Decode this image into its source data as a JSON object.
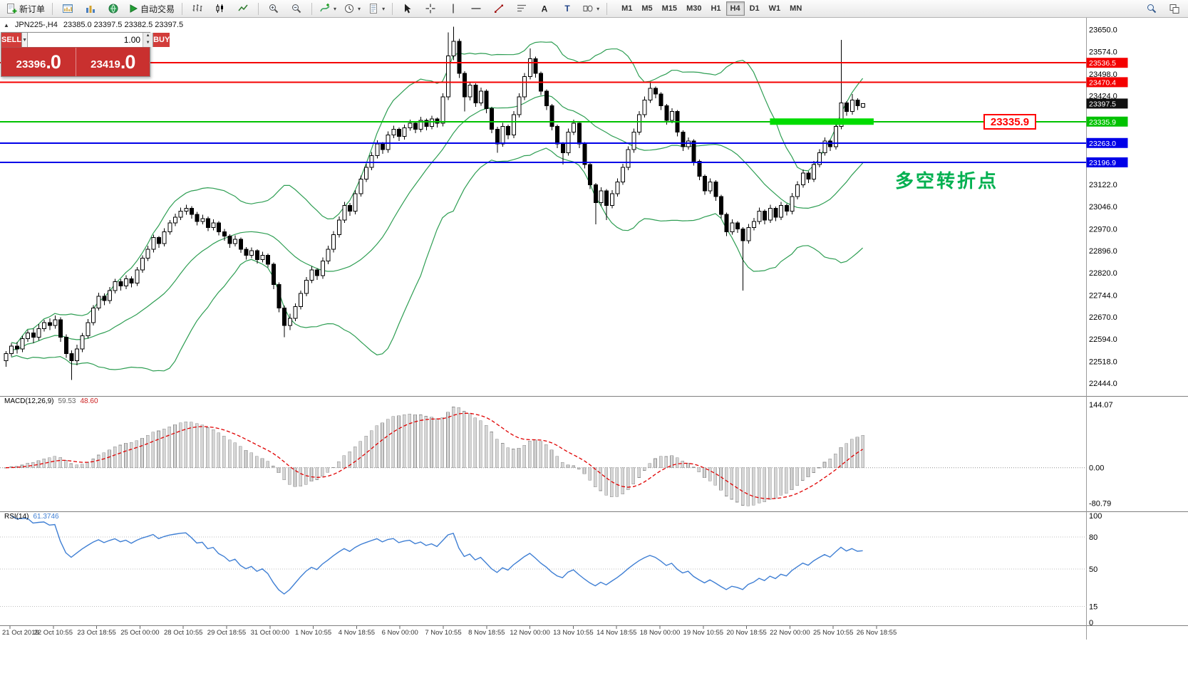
{
  "toolbar": {
    "new_order_label": "新订单",
    "auto_trading_label": "自动交易",
    "timeframes": [
      "M1",
      "M5",
      "M15",
      "M30",
      "H1",
      "H4",
      "D1",
      "W1",
      "MN"
    ],
    "active_timeframe": "H4"
  },
  "icons": {
    "dropdown_arrow": "▾",
    "spinner_up": "▲",
    "spinner_down": "▼",
    "panel_toggle": "▲",
    "order_dropdown": "▼"
  },
  "symbol_info": {
    "symbol_period": "JPN225-,H4",
    "ohlc": "23385.0 23397.5 23382.5 23397.5"
  },
  "trade_panel": {
    "sell_label": "SELL",
    "buy_label": "BUY",
    "volume": "1.00",
    "sell_price": "23396",
    "sell_price_fraction": ".0",
    "buy_price": "23419",
    "buy_price_fraction": ".0",
    "panel_color": "#c9302f"
  },
  "annotations": {
    "turning_point": {
      "text": "多空转折点",
      "color": "#00b050"
    },
    "price_label": {
      "text": "23335.9",
      "color": "#ff0000"
    }
  },
  "chart_data": {
    "type": "candlestick",
    "symbol": "JPN225-",
    "timeframe": "H4",
    "current_price": 23397.5,
    "current_price_label": "23397.5",
    "price_axis_labels": [
      "23650.0",
      "23574.0",
      "23498.0",
      "23424.0",
      "23122.0",
      "23046.0",
      "22970.0",
      "22896.0",
      "22820.0",
      "22744.0",
      "22670.0",
      "22594.0",
      "22518.0",
      "22444.0"
    ],
    "hlines": [
      {
        "price": 23536.5,
        "label": "23536.5",
        "color": "#f40000"
      },
      {
        "price": 23470.4,
        "label": "23470.4",
        "color": "#f40000"
      },
      {
        "price": 23335.9,
        "label": "23335.9",
        "color": "#00c200"
      },
      {
        "price": 23263.0,
        "label": "23263.0",
        "color": "#0000e8"
      },
      {
        "price": 23196.9,
        "label": "23196.9",
        "color": "#0000e8"
      }
    ],
    "highlight_box": {
      "price": 23335.9,
      "from_index": 140,
      "to_index": 159,
      "color": "#00dc00"
    },
    "bollinger": {
      "period": 20,
      "deviation": 2,
      "color": "#2e9e53"
    },
    "x_axis_labels": [
      "21 Oct 2019",
      "22 Oct 10:55",
      "23 Oct 18:55",
      "25 Oct 00:00",
      "28 Oct 10:55",
      "29 Oct 18:55",
      "31 Oct 00:00",
      "1 Nov 10:55",
      "4 Nov 18:55",
      "6 Nov 00:00",
      "7 Nov 10:55",
      "8 Nov 18:55",
      "12 Nov 00:00",
      "13 Nov 10:55",
      "14 Nov 18:55",
      "18 Nov 00:00",
      "19 Nov 10:55",
      "20 Nov 18:55",
      "22 Nov 00:00",
      "25 Nov 10:55",
      "26 Nov 18:55"
    ],
    "panes": {
      "macd": {
        "name": "MACD(12,26,9)",
        "value_main": "59.53",
        "value_signal": "48.60",
        "fast": 12,
        "slow": 26,
        "signal": 9,
        "axis_labels": [
          "144.07",
          "0.00",
          "-80.79"
        ],
        "bar_color": "#d6d6d6",
        "bar_stroke": "#8f8f8f",
        "signal_color": "#e00000"
      },
      "rsi": {
        "name": "RSI(14)",
        "value": "61.3746",
        "period": 14,
        "axis_labels": [
          "100",
          "80",
          "50",
          "15",
          "0"
        ],
        "levels": [
          80,
          50,
          15
        ],
        "color": "#3f7fd4"
      }
    },
    "candles": [
      [
        22520,
        22553,
        22500,
        22545
      ],
      [
        22545,
        22580,
        22535,
        22570
      ],
      [
        22570,
        22585,
        22545,
        22560
      ],
      [
        22560,
        22605,
        22550,
        22595
      ],
      [
        22595,
        22625,
        22585,
        22615
      ],
      [
        22615,
        22630,
        22580,
        22600
      ],
      [
        22600,
        22645,
        22590,
        22630
      ],
      [
        22630,
        22660,
        22620,
        22650
      ],
      [
        22650,
        22665,
        22625,
        22640
      ],
      [
        22640,
        22675,
        22630,
        22660
      ],
      [
        22660,
        22668,
        22585,
        22600
      ],
      [
        22600,
        22610,
        22530,
        22545
      ],
      [
        22545,
        22555,
        22455,
        22520
      ],
      [
        22520,
        22575,
        22505,
        22560
      ],
      [
        22560,
        22615,
        22550,
        22605
      ],
      [
        22605,
        22662,
        22595,
        22650
      ],
      [
        22650,
        22710,
        22640,
        22700
      ],
      [
        22700,
        22752,
        22692,
        22740
      ],
      [
        22740,
        22750,
        22710,
        22725
      ],
      [
        22725,
        22772,
        22715,
        22760
      ],
      [
        22760,
        22800,
        22750,
        22790
      ],
      [
        22790,
        22798,
        22760,
        22775
      ],
      [
        22775,
        22812,
        22765,
        22800
      ],
      [
        22800,
        22808,
        22770,
        22785
      ],
      [
        22785,
        22840,
        22775,
        22830
      ],
      [
        22830,
        22880,
        22820,
        22870
      ],
      [
        22870,
        22912,
        22860,
        22900
      ],
      [
        22900,
        22950,
        22890,
        22940
      ],
      [
        22940,
        22945,
        22905,
        22920
      ],
      [
        22920,
        22972,
        22910,
        22960
      ],
      [
        22960,
        23000,
        22950,
        22990
      ],
      [
        22990,
        23022,
        22980,
        23010
      ],
      [
        23010,
        23042,
        23000,
        23030
      ],
      [
        23030,
        23052,
        23018,
        23040
      ],
      [
        23040,
        23048,
        23005,
        23020
      ],
      [
        23020,
        23028,
        22982,
        22995
      ],
      [
        22995,
        23018,
        22985,
        23005
      ],
      [
        23005,
        23012,
        22962,
        22975
      ],
      [
        22975,
        23002,
        22965,
        22990
      ],
      [
        22990,
        22996,
        22948,
        22960
      ],
      [
        22960,
        22970,
        22930,
        22945
      ],
      [
        22945,
        22952,
        22905,
        22920
      ],
      [
        22920,
        22948,
        22910,
        22935
      ],
      [
        22935,
        22940,
        22888,
        22900
      ],
      [
        22900,
        22908,
        22865,
        22880
      ],
      [
        22880,
        22906,
        22870,
        22895
      ],
      [
        22895,
        22900,
        22852,
        22865
      ],
      [
        22865,
        22892,
        22855,
        22880
      ],
      [
        22880,
        22886,
        22838,
        22850
      ],
      [
        22850,
        22856,
        22765,
        22780
      ],
      [
        22780,
        22788,
        22685,
        22700
      ],
      [
        22700,
        22708,
        22600,
        22640
      ],
      [
        22640,
        22680,
        22625,
        22665
      ],
      [
        22665,
        22716,
        22655,
        22705
      ],
      [
        22705,
        22760,
        22695,
        22750
      ],
      [
        22750,
        22806,
        22740,
        22795
      ],
      [
        22795,
        22842,
        22785,
        22830
      ],
      [
        22830,
        22836,
        22796,
        22810
      ],
      [
        22810,
        22872,
        22800,
        22860
      ],
      [
        22860,
        22912,
        22850,
        22900
      ],
      [
        22900,
        22962,
        22890,
        22950
      ],
      [
        22950,
        23012,
        22940,
        23000
      ],
      [
        23000,
        23062,
        22990,
        23050
      ],
      [
        23050,
        23058,
        23015,
        23030
      ],
      [
        23030,
        23102,
        23020,
        23090
      ],
      [
        23090,
        23152,
        23080,
        23140
      ],
      [
        23140,
        23192,
        23130,
        23180
      ],
      [
        23180,
        23232,
        23170,
        23220
      ],
      [
        23220,
        23272,
        23210,
        23260
      ],
      [
        23260,
        23266,
        23226,
        23240
      ],
      [
        23240,
        23302,
        23230,
        23290
      ],
      [
        23290,
        23322,
        23280,
        23310
      ],
      [
        23310,
        23316,
        23270,
        23285
      ],
      [
        23285,
        23326,
        23275,
        23315
      ],
      [
        23315,
        23342,
        23305,
        23330
      ],
      [
        23330,
        23336,
        23296,
        23310
      ],
      [
        23310,
        23352,
        23300,
        23340
      ],
      [
        23340,
        23346,
        23306,
        23320
      ],
      [
        23320,
        23356,
        23310,
        23345
      ],
      [
        23345,
        23350,
        23316,
        23330
      ],
      [
        23330,
        23432,
        23320,
        23420
      ],
      [
        23420,
        23640,
        23410,
        23560
      ],
      [
        23560,
        23660,
        23545,
        23610
      ],
      [
        23610,
        23618,
        23485,
        23500
      ],
      [
        23500,
        23508,
        23370,
        23420
      ],
      [
        23420,
        23472,
        23408,
        23460
      ],
      [
        23460,
        23466,
        23386,
        23400
      ],
      [
        23400,
        23452,
        23390,
        23440
      ],
      [
        23440,
        23446,
        23365,
        23380
      ],
      [
        23380,
        23386,
        23296,
        23310
      ],
      [
        23310,
        23318,
        23230,
        23260
      ],
      [
        23260,
        23332,
        23250,
        23320
      ],
      [
        23320,
        23326,
        23276,
        23290
      ],
      [
        23290,
        23372,
        23280,
        23360
      ],
      [
        23360,
        23432,
        23350,
        23420
      ],
      [
        23420,
        23502,
        23410,
        23490
      ],
      [
        23490,
        23585,
        23480,
        23550
      ],
      [
        23550,
        23558,
        23486,
        23500
      ],
      [
        23500,
        23506,
        23426,
        23440
      ],
      [
        23440,
        23446,
        23376,
        23390
      ],
      [
        23390,
        23396,
        23306,
        23320
      ],
      [
        23320,
        23326,
        23246,
        23260
      ],
      [
        23260,
        23266,
        23190,
        23230
      ],
      [
        23230,
        23312,
        23220,
        23300
      ],
      [
        23300,
        23342,
        23290,
        23330
      ],
      [
        23330,
        23336,
        23246,
        23260
      ],
      [
        23260,
        23266,
        23176,
        23190
      ],
      [
        23190,
        23196,
        23106,
        23120
      ],
      [
        23120,
        23126,
        22985,
        23060
      ],
      [
        23060,
        23112,
        23048,
        23100
      ],
      [
        23100,
        23106,
        23000,
        23050
      ],
      [
        23050,
        23102,
        23040,
        23090
      ],
      [
        23090,
        23142,
        23080,
        23130
      ],
      [
        23130,
        23192,
        23120,
        23180
      ],
      [
        23180,
        23252,
        23170,
        23240
      ],
      [
        23240,
        23312,
        23230,
        23300
      ],
      [
        23300,
        23372,
        23290,
        23360
      ],
      [
        23360,
        23422,
        23350,
        23410
      ],
      [
        23410,
        23468,
        23400,
        23450
      ],
      [
        23450,
        23456,
        23416,
        23430
      ],
      [
        23430,
        23436,
        23376,
        23390
      ],
      [
        23390,
        23396,
        23326,
        23340
      ],
      [
        23340,
        23382,
        23330,
        23370
      ],
      [
        23370,
        23376,
        23286,
        23300
      ],
      [
        23300,
        23306,
        23236,
        23250
      ],
      [
        23250,
        23282,
        23240,
        23270
      ],
      [
        23270,
        23276,
        23186,
        23200
      ],
      [
        23200,
        23206,
        23136,
        23150
      ],
      [
        23150,
        23156,
        23086,
        23100
      ],
      [
        23100,
        23142,
        23090,
        23130
      ],
      [
        23130,
        23136,
        23066,
        23080
      ],
      [
        23080,
        23086,
        23006,
        23020
      ],
      [
        23020,
        23026,
        22946,
        22960
      ],
      [
        22960,
        23002,
        22950,
        22990
      ],
      [
        22990,
        22996,
        22956,
        22970
      ],
      [
        22970,
        22976,
        22760,
        22930
      ],
      [
        22930,
        22987,
        22920,
        22975
      ],
      [
        22975,
        23007,
        22965,
        22995
      ],
      [
        22995,
        23042,
        22985,
        23030
      ],
      [
        23030,
        23036,
        22986,
        23000
      ],
      [
        23000,
        23052,
        22990,
        23040
      ],
      [
        23040,
        23046,
        22996,
        23010
      ],
      [
        23010,
        23062,
        23000,
        23050
      ],
      [
        23050,
        23056,
        23016,
        23030
      ],
      [
        23030,
        23092,
        23020,
        23080
      ],
      [
        23080,
        23132,
        23070,
        23120
      ],
      [
        23120,
        23172,
        23110,
        23160
      ],
      [
        23160,
        23166,
        23126,
        23140
      ],
      [
        23140,
        23202,
        23130,
        23190
      ],
      [
        23190,
        23242,
        23180,
        23230
      ],
      [
        23230,
        23282,
        23220,
        23270
      ],
      [
        23270,
        23276,
        23236,
        23250
      ],
      [
        23250,
        23332,
        23240,
        23320
      ],
      [
        23320,
        23615,
        23310,
        23400
      ],
      [
        23400,
        23406,
        23356,
        23370
      ],
      [
        23370,
        23430,
        23360,
        23410
      ],
      [
        23410,
        23416,
        23376,
        23390
      ],
      [
        23385,
        23397.5,
        23382.5,
        23397.5
      ]
    ]
  }
}
